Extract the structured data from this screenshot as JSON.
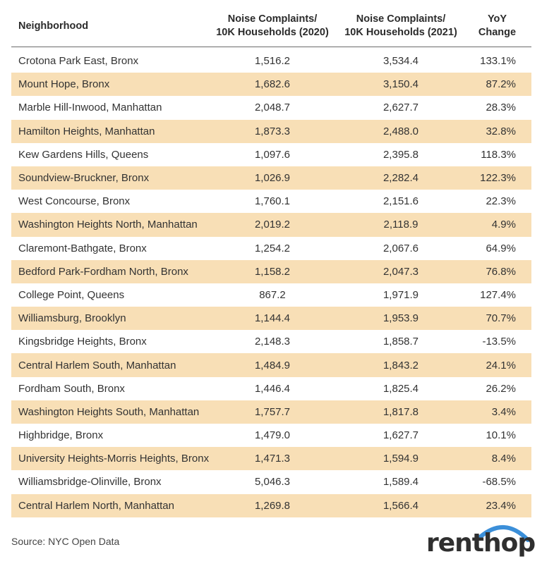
{
  "chart_data": {
    "type": "table",
    "columns": [
      {
        "lines": [
          "Neighborhood"
        ]
      },
      {
        "lines": [
          "Noise Complaints/",
          "10K Households (2020)"
        ]
      },
      {
        "lines": [
          "Noise Complaints/",
          "10K Households (2021)"
        ]
      },
      {
        "lines": [
          "YoY",
          "Change"
        ]
      }
    ],
    "rows": [
      [
        "Crotona Park East, Bronx",
        "1,516.2",
        "3,534.4",
        "133.1%"
      ],
      [
        "Mount Hope, Bronx",
        "1,682.6",
        "3,150.4",
        "87.2%"
      ],
      [
        "Marble Hill-Inwood, Manhattan",
        "2,048.7",
        "2,627.7",
        "28.3%"
      ],
      [
        "Hamilton Heights, Manhattan",
        "1,873.3",
        "2,488.0",
        "32.8%"
      ],
      [
        "Kew Gardens Hills, Queens",
        "1,097.6",
        "2,395.8",
        "118.3%"
      ],
      [
        "Soundview-Bruckner, Bronx",
        "1,026.9",
        "2,282.4",
        "122.3%"
      ],
      [
        "West Concourse, Bronx",
        "1,760.1",
        "2,151.6",
        "22.3%"
      ],
      [
        "Washington Heights North, Manhattan",
        "2,019.2",
        "2,118.9",
        "4.9%"
      ],
      [
        "Claremont-Bathgate, Bronx",
        "1,254.2",
        "2,067.6",
        "64.9%"
      ],
      [
        "Bedford Park-Fordham North, Bronx",
        "1,158.2",
        "2,047.3",
        "76.8%"
      ],
      [
        "College Point, Queens",
        "867.2",
        "1,971.9",
        "127.4%"
      ],
      [
        "Williamsburg, Brooklyn",
        "1,144.4",
        "1,953.9",
        "70.7%"
      ],
      [
        "Kingsbridge Heights, Bronx",
        "2,148.3",
        "1,858.7",
        "-13.5%"
      ],
      [
        "Central Harlem South, Manhattan",
        "1,484.9",
        "1,843.2",
        "24.1%"
      ],
      [
        "Fordham South, Bronx",
        "1,446.4",
        "1,825.4",
        "26.2%"
      ],
      [
        "Washington Heights South, Manhattan",
        "1,757.7",
        "1,817.8",
        "3.4%"
      ],
      [
        "Highbridge, Bronx",
        "1,479.0",
        "1,627.7",
        "10.1%"
      ],
      [
        "University Heights-Morris Heights, Bronx",
        "1,471.3",
        "1,594.9",
        "8.4%"
      ],
      [
        "Williamsbridge-Olinville, Bronx",
        "5,046.3",
        "1,589.4",
        "-68.5%"
      ],
      [
        "Central Harlem North, Manhattan",
        "1,269.8",
        "1,566.4",
        "23.4%"
      ]
    ]
  },
  "source": "Source: NYC Open Data",
  "logo": {
    "text": "renthop",
    "icon": "arc-icon"
  },
  "colors": {
    "stripe": "#f8dfb6",
    "logo_arc": "#3b8fd9",
    "text": "#333333"
  }
}
